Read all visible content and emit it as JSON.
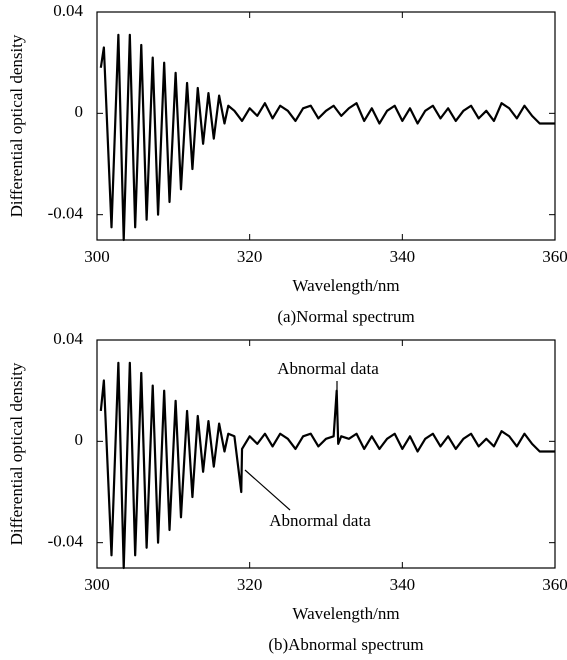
{
  "chart_data": [
    {
      "type": "line",
      "caption": "(a)Normal spectrum",
      "x_label": "Wavelength/nm",
      "y_label": "Differential optical density",
      "x": [
        300.5,
        300.9,
        301.9,
        302.8,
        303.5,
        304.3,
        305.0,
        305.8,
        306.5,
        307.3,
        308.0,
        308.8,
        309.5,
        310.3,
        311.0,
        311.8,
        312.5,
        313.2,
        313.9,
        314.6,
        315.3,
        316.0,
        316.7,
        317.2,
        318,
        319,
        320,
        321,
        322,
        323,
        324,
        325,
        326,
        327,
        328,
        329,
        330,
        331,
        332,
        333,
        334,
        335,
        336,
        337,
        338,
        339,
        340,
        341,
        342,
        343,
        344,
        345,
        346,
        347,
        348,
        349,
        350,
        351,
        352,
        353,
        354,
        355,
        356,
        357,
        358,
        360
      ],
      "series": [
        {
          "color": "#000000",
          "values": [
            0.018,
            0.026,
            -0.045,
            0.031,
            -0.05,
            0.031,
            -0.045,
            0.027,
            -0.042,
            0.022,
            -0.04,
            0.02,
            -0.035,
            0.016,
            -0.03,
            0.012,
            -0.022,
            0.01,
            -0.012,
            0.008,
            -0.01,
            0.007,
            -0.004,
            0.003,
            0.001,
            -0.003,
            0.002,
            -0.001,
            0.004,
            -0.002,
            0.003,
            0.001,
            -0.003,
            0.002,
            0.003,
            -0.002,
            0.001,
            0.003,
            -0.001,
            0.002,
            0.004,
            -0.003,
            0.002,
            -0.004,
            0.001,
            0.003,
            -0.003,
            0.002,
            -0.004,
            0.001,
            0.003,
            -0.002,
            0.002,
            -0.003,
            0.001,
            0.003,
            -0.002,
            0.001,
            -0.003,
            0.004,
            0.002,
            -0.002,
            0.003,
            -0.001,
            -0.004,
            -0.004
          ]
        }
      ],
      "xlim": [
        300,
        360
      ],
      "ylim": [
        -0.05,
        0.04
      ],
      "xticks": [
        300,
        320,
        340,
        360
      ],
      "yticks": [
        0.04,
        0,
        -0.04
      ],
      "annotations": []
    },
    {
      "type": "line",
      "caption": "(b)Abnormal spectrum",
      "x_label": "Wavelength/nm",
      "y_label": "Differential optical density",
      "x": [
        300.5,
        300.9,
        301.9,
        302.8,
        303.5,
        304.3,
        305.0,
        305.8,
        306.5,
        307.3,
        308.0,
        308.8,
        309.5,
        310.3,
        311.0,
        311.8,
        312.5,
        313.2,
        313.9,
        314.6,
        315.3,
        316.0,
        316.7,
        317.2,
        318,
        318.9,
        319,
        320,
        321,
        322,
        323,
        324,
        325,
        326,
        327,
        328,
        329,
        330,
        331,
        331.4,
        331.6,
        332,
        333,
        334,
        335,
        336,
        337,
        338,
        339,
        340,
        341,
        342,
        343,
        344,
        345,
        346,
        347,
        348,
        349,
        350,
        351,
        352,
        353,
        354,
        355,
        356,
        357,
        358,
        360
      ],
      "series": [
        {
          "color": "#000000",
          "values": [
            0.012,
            0.024,
            -0.045,
            0.031,
            -0.05,
            0.031,
            -0.045,
            0.027,
            -0.042,
            0.022,
            -0.04,
            0.02,
            -0.035,
            0.016,
            -0.03,
            0.012,
            -0.022,
            0.01,
            -0.012,
            0.008,
            -0.01,
            0.007,
            -0.004,
            0.003,
            0.002,
            -0.02,
            -0.003,
            0.002,
            -0.001,
            0.003,
            -0.002,
            0.003,
            0.001,
            -0.003,
            0.002,
            0.003,
            -0.002,
            0.001,
            0.002,
            0.02,
            -0.001,
            0.002,
            0.001,
            0.003,
            -0.003,
            0.002,
            -0.003,
            0.001,
            0.003,
            -0.003,
            0.002,
            -0.004,
            0.001,
            0.003,
            -0.002,
            0.002,
            -0.003,
            0.001,
            0.003,
            -0.002,
            0.001,
            -0.002,
            0.004,
            0.002,
            -0.002,
            0.003,
            -0.001,
            -0.004,
            -0.004
          ]
        }
      ],
      "xlim": [
        300,
        360
      ],
      "ylim": [
        -0.05,
        0.04
      ],
      "xticks": [
        300,
        320,
        340,
        360
      ],
      "yticks": [
        0.04,
        0,
        -0.04
      ],
      "annotations": [
        "Abnormal data",
        "Abnormal data"
      ]
    }
  ]
}
